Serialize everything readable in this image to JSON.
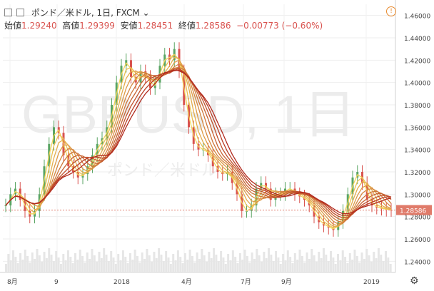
{
  "header": {
    "expand_icon": "expand-icon",
    "add_icon": "add-icon",
    "symbol": "ポンド／米ドル, 1日, FXCM",
    "ohlc": {
      "open_label": "始値",
      "open": "1.29240",
      "high_label": "高値",
      "high": "1.29399",
      "low_label": "安値",
      "low": "1.28451",
      "close_label": "終値",
      "close": "1.28586",
      "change": "−0.00773 (−0.60%)"
    }
  },
  "watermark": {
    "line1": "GBPUSD, 1日",
    "line2": "ポンド／米ドル"
  },
  "price_tag": "1.28586",
  "chart_data": {
    "type": "line",
    "x_labels": [
      "8月",
      "9",
      "2018",
      "4月",
      "7月",
      "9月",
      "2019"
    ],
    "y_ticks": [
      1.24,
      1.26,
      1.28,
      1.3,
      1.32,
      1.34,
      1.36,
      1.38,
      1.4,
      1.42,
      1.44,
      1.46
    ],
    "ylim": [
      1.23,
      1.47
    ],
    "last_price": 1.28586,
    "colors": {
      "up": "#5aa564",
      "down": "#d9534f",
      "ma_start": "#f2d45a",
      "ma_end": "#b22a1e",
      "last_line": "#e07b6a",
      "tag": "#e07b6a"
    },
    "series": [
      {
        "type": "candles",
        "x_index": [
          0,
          1,
          2,
          3,
          4,
          5,
          6,
          7,
          8,
          9,
          10,
          11,
          12,
          13,
          14,
          15,
          16,
          17,
          18,
          19,
          20,
          21,
          22,
          23,
          24,
          25,
          26,
          27,
          28,
          29,
          30,
          31,
          32,
          33,
          34,
          35,
          36,
          37,
          38,
          39,
          40,
          41,
          42,
          43,
          44,
          45,
          46,
          47,
          48,
          49,
          50,
          51,
          52,
          53,
          54,
          55,
          56,
          57,
          58,
          59,
          60,
          61,
          62,
          63,
          64,
          65,
          66,
          67,
          68,
          69,
          70,
          71,
          72,
          73,
          74,
          75,
          76,
          77,
          78,
          79,
          80
        ],
        "close": [
          1.29,
          1.3,
          1.305,
          1.295,
          1.285,
          1.28,
          1.285,
          1.3,
          1.325,
          1.345,
          1.36,
          1.355,
          1.335,
          1.325,
          1.32,
          1.315,
          1.318,
          1.325,
          1.335,
          1.345,
          1.35,
          1.36,
          1.38,
          1.4,
          1.415,
          1.42,
          1.405,
          1.4,
          1.41,
          1.405,
          1.395,
          1.4,
          1.415,
          1.425,
          1.42,
          1.43,
          1.41,
          1.38,
          1.36,
          1.345,
          1.34,
          1.34,
          1.335,
          1.325,
          1.32,
          1.318,
          1.32,
          1.31,
          1.3,
          1.285,
          1.285,
          1.29,
          1.305,
          1.31,
          1.305,
          1.295,
          1.3,
          1.3,
          1.305,
          1.305,
          1.3,
          1.298,
          1.295,
          1.29,
          1.28,
          1.275,
          1.272,
          1.27,
          1.268,
          1.275,
          1.285,
          1.3,
          1.315,
          1.32,
          1.31,
          1.295,
          1.29,
          1.288,
          1.287,
          1.286,
          1.28586
        ]
      }
    ]
  }
}
